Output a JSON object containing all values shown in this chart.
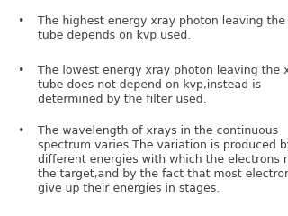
{
  "background_color": "#ffffff",
  "text_color": "#404040",
  "font_size": 9.0,
  "bullet_points": [
    "The highest energy xray photon leaving the xray\ntube depends on kvp used.",
    "The lowest energy xray photon leaving the xray\ntube does not depend on kvp,instead is\ndetermined by the filter used.",
    "The wavelength of xrays in the continuous\nspectrum varies.The variation is produced by the\ndifferent energies with which the electrons reach\nthe target,and by the fact that most electrons\ngive up their energies in stages."
  ],
  "bullet_symbol": "•",
  "figsize": [
    3.2,
    2.4
  ],
  "dpi": 100
}
